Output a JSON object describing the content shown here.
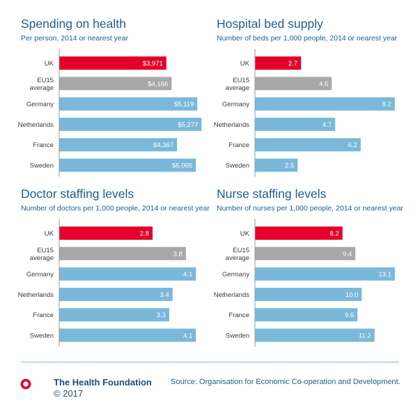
{
  "chart_data": [
    {
      "type": "bar",
      "orientation": "horizontal",
      "title": "Spending on health",
      "subtitle": "Per person, 2014 or nearest year",
      "categories": [
        "UK",
        "EU15\naverage",
        "Germany",
        "Netherlands",
        "France",
        "Sweden"
      ],
      "values": [
        3971,
        4166,
        5119,
        5277,
        4367,
        5065
      ],
      "value_labels": [
        "$3,971",
        "$4,166",
        "$5,119",
        "$5,277",
        "$4,367",
        "$5,065"
      ],
      "xlim": [
        0,
        5500
      ],
      "colors": [
        "#e4002b",
        "#a8a8a8",
        "#7ab8d9",
        "#7ab8d9",
        "#7ab8d9",
        "#7ab8d9"
      ]
    },
    {
      "type": "bar",
      "orientation": "horizontal",
      "title": "Hospital bed supply",
      "subtitle": "Number of beds per 1,000 people, 2014 or nearest year",
      "categories": [
        "UK",
        "EU15\naverage",
        "Germany",
        "Netherlands",
        "France",
        "Sweden"
      ],
      "values": [
        2.7,
        4.5,
        8.2,
        4.7,
        6.2,
        2.5
      ],
      "value_labels": [
        "2.7",
        "4.5",
        "8.2",
        "4.7",
        "6.2",
        "2.5"
      ],
      "xlim": [
        0,
        8.7
      ],
      "colors": [
        "#e4002b",
        "#a8a8a8",
        "#7ab8d9",
        "#7ab8d9",
        "#7ab8d9",
        "#7ab8d9"
      ]
    },
    {
      "type": "bar",
      "orientation": "horizontal",
      "title": "Doctor staffing levels",
      "subtitle": "Number of doctors per 1,000 people, 2014 or nearest year",
      "categories": [
        "UK",
        "EU15\naverage",
        "Germany",
        "Netherlands",
        "France",
        "Sweden"
      ],
      "values": [
        2.8,
        3.8,
        4.1,
        3.4,
        3.3,
        4.1
      ],
      "value_labels": [
        "2.8",
        "3.8",
        "4.1",
        "3.4",
        "3.3",
        "4.1"
      ],
      "xlim": [
        0,
        4.45
      ],
      "colors": [
        "#e4002b",
        "#a8a8a8",
        "#7ab8d9",
        "#7ab8d9",
        "#7ab8d9",
        "#7ab8d9"
      ]
    },
    {
      "type": "bar",
      "orientation": "horizontal",
      "title": "Nurse staffing levels",
      "subtitle": "Number of nurses per 1,000 people, 2014 or nearest year",
      "categories": [
        "UK",
        "EU15\naverage",
        "Germany",
        "Netherlands",
        "France",
        "Sweden"
      ],
      "values": [
        8.2,
        9.4,
        13.1,
        10.0,
        9.6,
        11.2
      ],
      "value_labels": [
        "8.2",
        "9.4",
        "13.1",
        "10.0",
        "9.6",
        "11.2"
      ],
      "xlim": [
        0,
        13.9
      ],
      "colors": [
        "#e4002b",
        "#a8a8a8",
        "#7ab8d9",
        "#7ab8d9",
        "#7ab8d9",
        "#7ab8d9"
      ]
    }
  ],
  "footer": {
    "org_name": "The Health Foundation",
    "copyright": "© 2017",
    "source": "Source: Organisation for Economic Co-operation and Development.",
    "logo_color": "#e4002b"
  }
}
